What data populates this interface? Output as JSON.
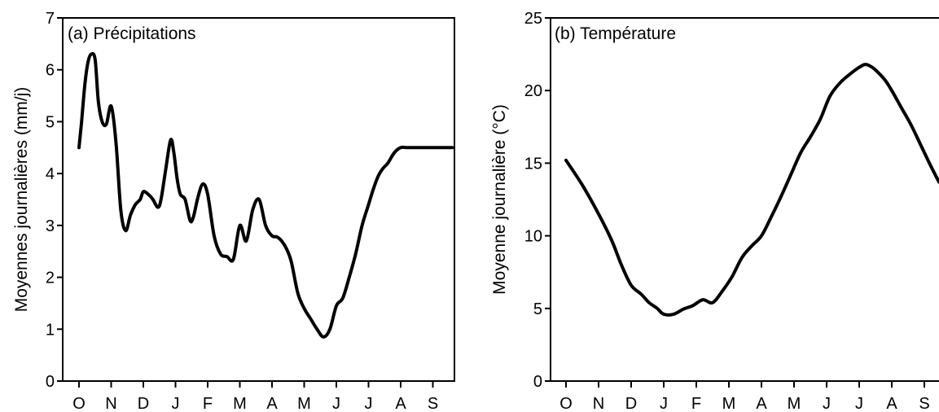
{
  "chart_data": [
    {
      "type": "line",
      "title": "(a) Précipitations",
      "xlabel": "",
      "ylabel": "Moyennes journalières (mm/j)",
      "categories": [
        "O",
        "N",
        "D",
        "J",
        "F",
        "M",
        "A",
        "M",
        "J",
        "J",
        "A",
        "S"
      ],
      "ylim": [
        0,
        7
      ],
      "yticks": [
        "0",
        "1",
        "2",
        "3",
        "4",
        "5",
        "6",
        "7"
      ],
      "grid": false,
      "series": [
        {
          "color": "#000000",
          "x": [
            0,
            0.08,
            0.18,
            0.28,
            0.38,
            0.5,
            0.6,
            0.72,
            0.85,
            1.0,
            1.15,
            1.3,
            1.45,
            1.6,
            1.75,
            1.9,
            2.0,
            2.15,
            2.3,
            2.45,
            2.55,
            2.7,
            2.85,
            2.95,
            3.05,
            3.15,
            3.3,
            3.45,
            3.55,
            3.7,
            3.85,
            4.0,
            4.2,
            4.4,
            4.6,
            4.8,
            5.0,
            5.2,
            5.4,
            5.6,
            5.8,
            6.0,
            6.15,
            6.3,
            6.45,
            6.6,
            6.8,
            7.0,
            7.2,
            7.4,
            7.6,
            7.8,
            8.0,
            8.2,
            8.4,
            8.6,
            8.8,
            9.0,
            9.15,
            9.3,
            9.45,
            9.6,
            9.8,
            10.0,
            10.2,
            10.4,
            10.6,
            10.8,
            11.0,
            11.2,
            11.4,
            11.6
          ],
          "y": [
            4.5,
            5.0,
            5.7,
            6.15,
            6.3,
            6.2,
            5.4,
            5.0,
            4.95,
            5.3,
            4.6,
            3.3,
            2.9,
            3.2,
            3.4,
            3.5,
            3.65,
            3.6,
            3.5,
            3.35,
            3.5,
            4.1,
            4.65,
            4.4,
            3.9,
            3.6,
            3.5,
            3.1,
            3.15,
            3.55,
            3.8,
            3.6,
            2.8,
            2.45,
            2.4,
            2.35,
            3.0,
            2.7,
            3.3,
            3.5,
            3.0,
            2.8,
            2.78,
            2.7,
            2.55,
            2.3,
            1.7,
            1.4,
            1.2,
            1.0,
            0.85,
            1.0,
            1.45,
            1.6,
            2.0,
            2.45,
            3.0,
            3.4,
            3.7,
            3.95,
            4.1,
            4.2,
            4.4,
            4.5,
            4.5,
            4.5,
            4.5,
            4.5,
            4.5,
            4.5,
            4.5,
            4.5
          ]
        }
      ]
    },
    {
      "type": "line",
      "title": "(b) Température",
      "xlabel": "",
      "ylabel": "Moyenne journalière (°C)",
      "categories": [
        "O",
        "N",
        "D",
        "J",
        "F",
        "M",
        "A",
        "M",
        "J",
        "J",
        "A",
        "S"
      ],
      "ylim": [
        0,
        25
      ],
      "yticks": [
        "0",
        "5",
        "10",
        "15",
        "20",
        "25"
      ],
      "grid": false,
      "series": [
        {
          "color": "#000000",
          "x": [
            0,
            0.5,
            1.0,
            1.4,
            1.7,
            2.0,
            2.3,
            2.55,
            2.8,
            3.0,
            3.3,
            3.6,
            3.9,
            4.2,
            4.5,
            4.8,
            5.1,
            5.4,
            5.7,
            6.0,
            6.3,
            6.6,
            6.9,
            7.2,
            7.5,
            7.8,
            8.1,
            8.4,
            8.7,
            9.0,
            9.2,
            9.4,
            9.6,
            9.8,
            10.0,
            10.3,
            10.6,
            10.9,
            11.2,
            11.45
          ],
          "y": [
            15.2,
            13.5,
            11.5,
            9.7,
            8.0,
            6.6,
            6.0,
            5.4,
            5.0,
            4.6,
            4.6,
            4.95,
            5.2,
            5.6,
            5.4,
            6.2,
            7.2,
            8.5,
            9.3,
            10.0,
            11.3,
            12.7,
            14.2,
            15.7,
            16.8,
            18.0,
            19.6,
            20.5,
            21.1,
            21.6,
            21.8,
            21.6,
            21.2,
            20.7,
            20.0,
            18.8,
            17.6,
            16.2,
            14.8,
            13.7
          ]
        }
      ]
    }
  ]
}
